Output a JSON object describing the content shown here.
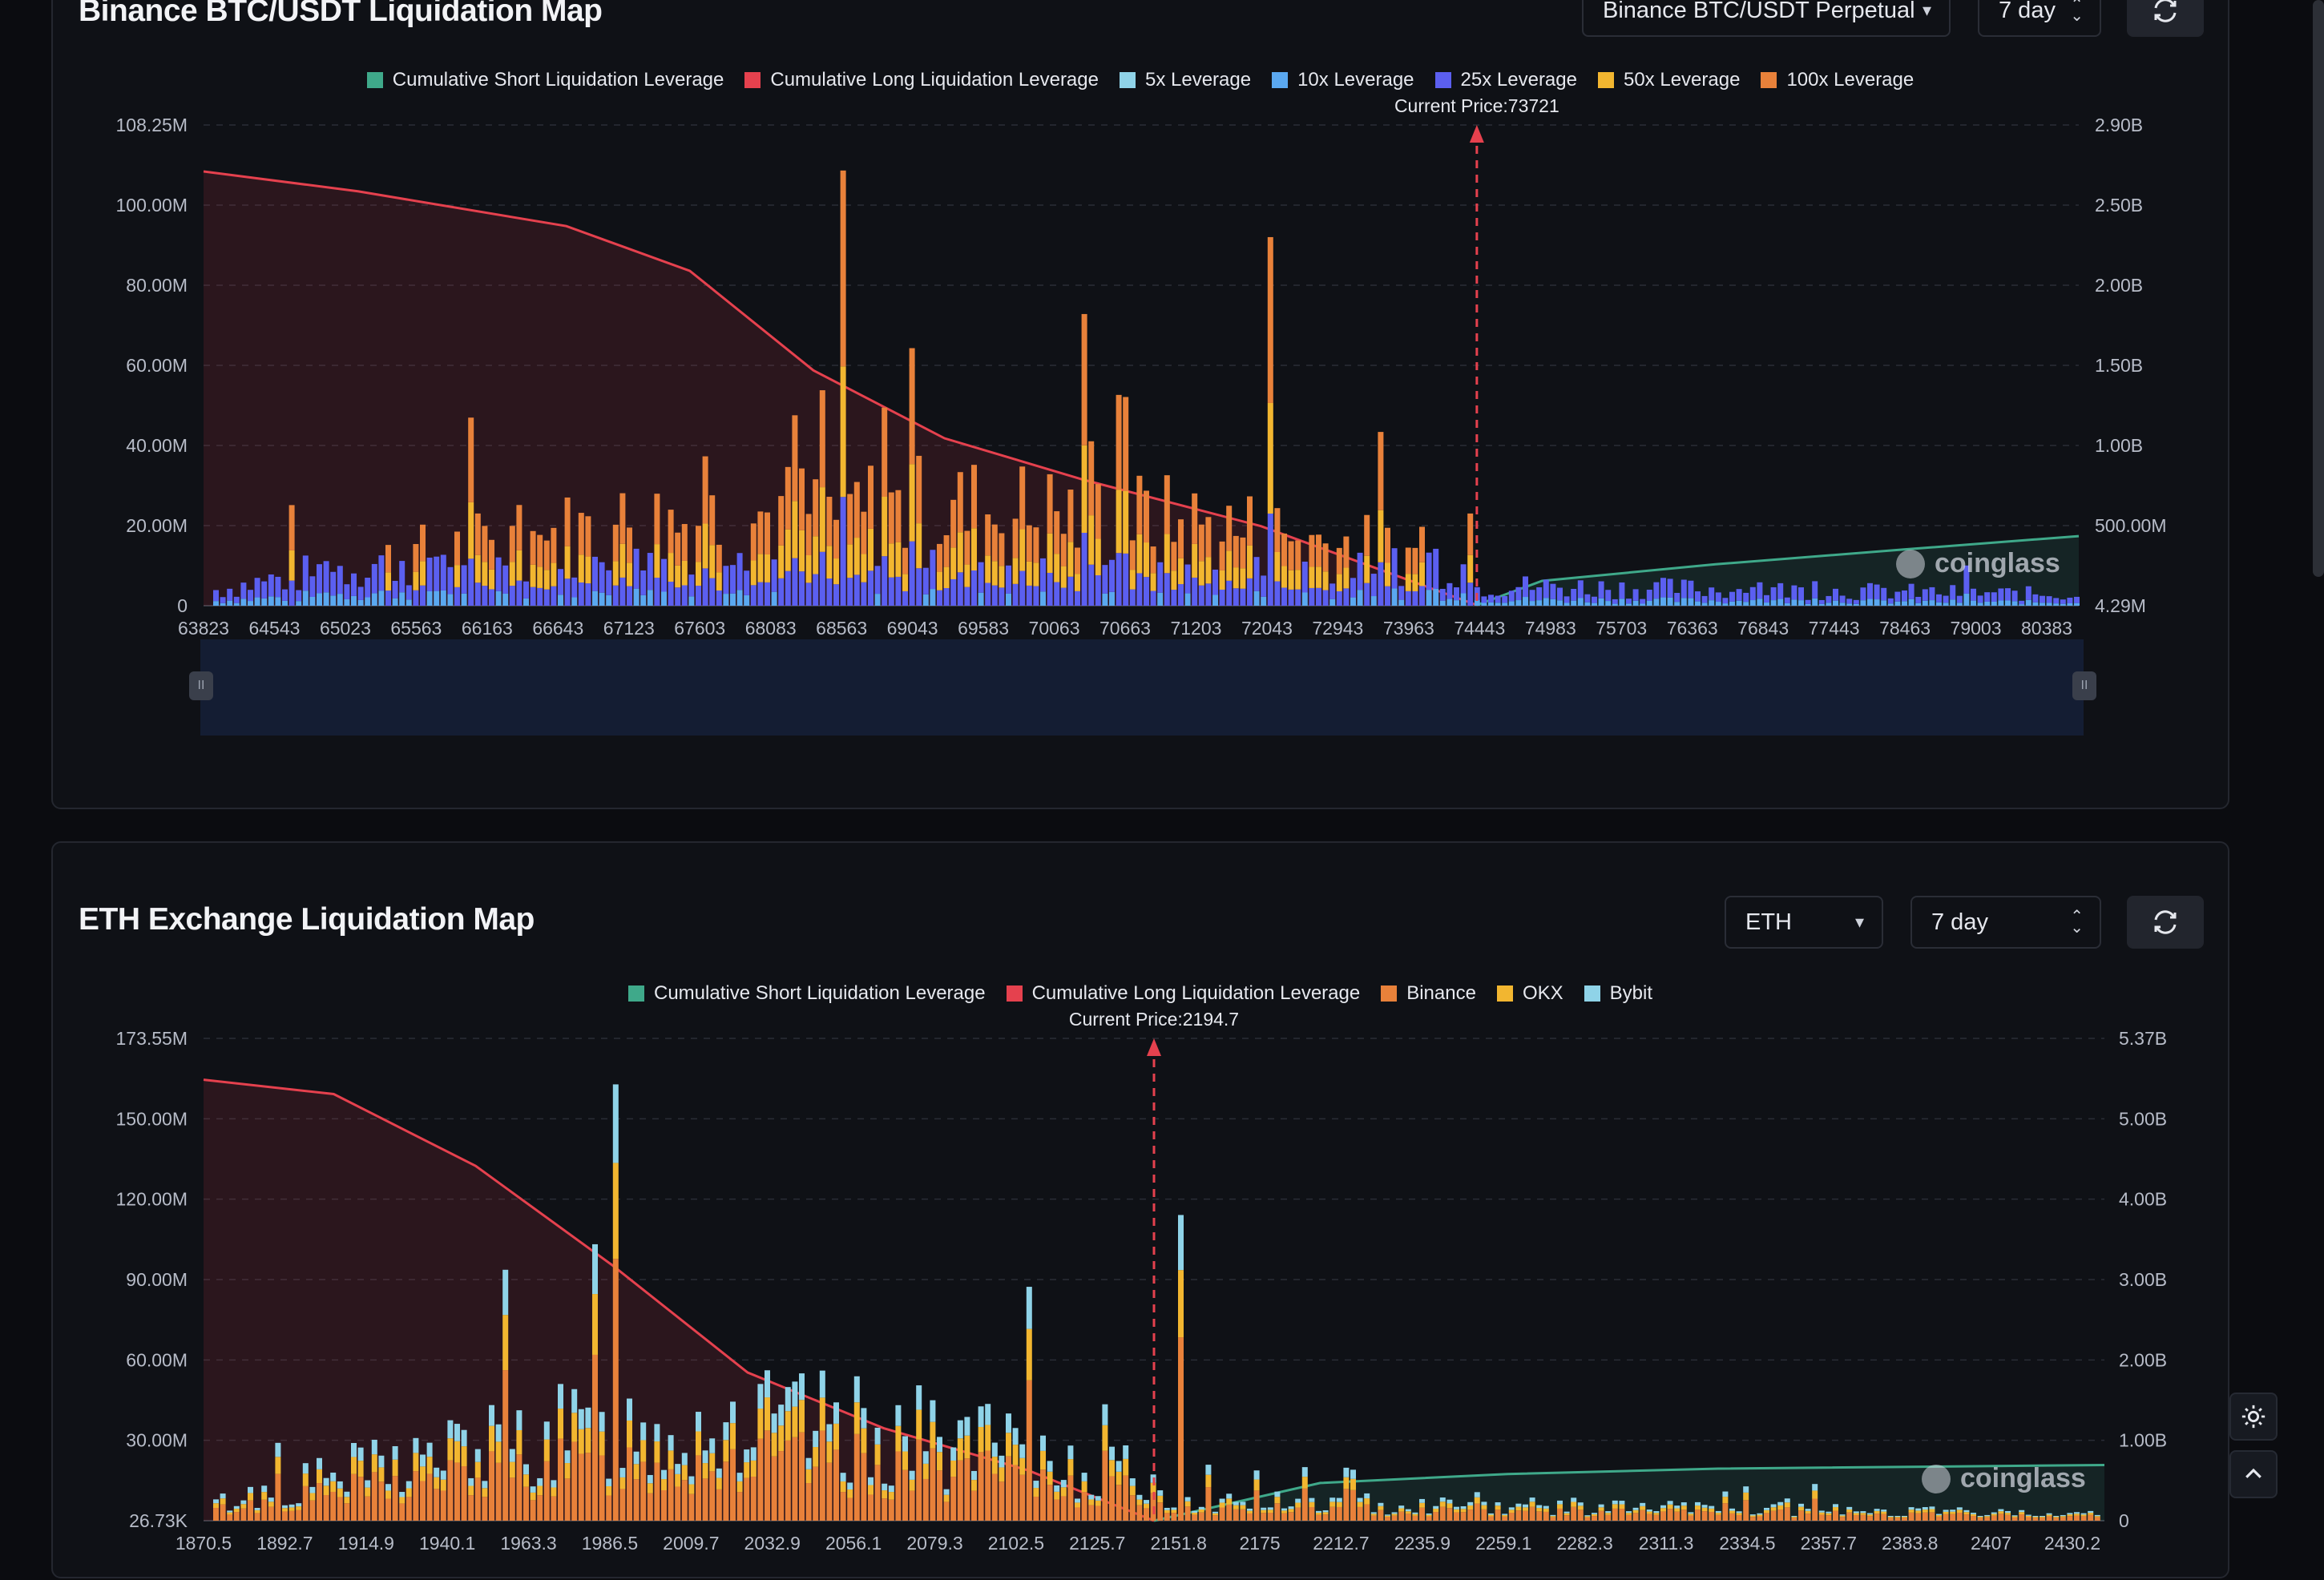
{
  "colors": {
    "short": "#3fa98a",
    "long": "#e5414e",
    "lev5": "#8fd3e8",
    "lev10": "#5aa8f0",
    "lev25": "#5b5ff0",
    "lev50": "#f2b630",
    "lev100": "#e8813a",
    "binance": "#e8813a",
    "okx": "#f2b630",
    "bybit": "#8fd3e8"
  },
  "btc": {
    "title": "Binance BTC/USDT Liquidation Map",
    "pair_select": "Binance BTC/USDT Perpetual",
    "range_select": "7 day",
    "legend": [
      {
        "label": "Cumulative Short Liquidation Leverage",
        "color": "#3fa98a"
      },
      {
        "label": "Cumulative Long Liquidation Leverage",
        "color": "#e5414e"
      },
      {
        "label": "5x Leverage",
        "color": "#8fd3e8"
      },
      {
        "label": "10x Leverage",
        "color": "#5aa8f0"
      },
      {
        "label": "25x Leverage",
        "color": "#5b5ff0"
      },
      {
        "label": "50x Leverage",
        "color": "#f2b630"
      },
      {
        "label": "100x Leverage",
        "color": "#e8813a"
      }
    ],
    "current_price": "Current Price:73721",
    "watermark": "coinglass"
  },
  "eth": {
    "title": "ETH Exchange Liquidation Map",
    "coin_select": "ETH",
    "range_select": "7 day",
    "legend": [
      {
        "label": "Cumulative Short Liquidation Leverage",
        "color": "#3fa98a"
      },
      {
        "label": "Cumulative Long Liquidation Leverage",
        "color": "#e5414e"
      },
      {
        "label": "Binance",
        "color": "#e8813a"
      },
      {
        "label": "OKX",
        "color": "#f2b630"
      },
      {
        "label": "Bybit",
        "color": "#8fd3e8"
      }
    ],
    "current_price": "Current Price:2194.7",
    "watermark": "coinglass"
  },
  "chart_data": [
    {
      "type": "bar",
      "title": "Binance BTC/USDT Liquidation Map",
      "x_ticks": [
        "63823",
        "64543",
        "65023",
        "65563",
        "66163",
        "66643",
        "67123",
        "67603",
        "68083",
        "68563",
        "69043",
        "69583",
        "70063",
        "70663",
        "71203",
        "72043",
        "72943",
        "73963",
        "74443",
        "74983",
        "75703",
        "76363",
        "76843",
        "77443",
        "78463",
        "79003",
        "80383"
      ],
      "y_left_ticks": [
        "108.25M",
        "100.00M",
        "80.00M",
        "60.00M",
        "40.00M",
        "20.00M",
        "0"
      ],
      "y_right_ticks": [
        "2.90B",
        "2.50B",
        "2.00B",
        "1.50B",
        "1.00B",
        "500.00M",
        "4.29M"
      ],
      "ylim_left": [
        0,
        108.25
      ],
      "ylim_right": [
        4.29,
        2900
      ],
      "current_price": 73721,
      "series": [
        {
          "name": "Cumulative Long Liquidation Leverage",
          "points_x": [
            63823,
            65023,
            66643,
            67603,
            68563,
            69583,
            70663,
            72043,
            73721
          ],
          "values_millions": [
            2620,
            2500,
            2290,
            2020,
            1420,
            1010,
            760,
            480,
            4.29
          ]
        },
        {
          "name": "Cumulative Short Liquidation Leverage",
          "points_x": [
            73721,
            74443,
            76363,
            78463,
            80383
          ],
          "values_millions": [
            4.29,
            150,
            250,
            340,
            420
          ]
        }
      ],
      "bar_peaks": [
        {
          "x": "68563",
          "value_millions": 98
        },
        {
          "x": "72043",
          "value_millions": 83
        },
        {
          "x": "69043",
          "value_millions": 58
        },
        {
          "x": "70663",
          "value_millions": 47
        }
      ]
    },
    {
      "type": "bar",
      "title": "ETH Exchange Liquidation Map",
      "x_ticks": [
        "1870.5",
        "1892.7",
        "1914.9",
        "1940.1",
        "1963.3",
        "1986.5",
        "2009.7",
        "2032.9",
        "2056.1",
        "2079.3",
        "2102.5",
        "2125.7",
        "2151.8",
        "2175",
        "2212.7",
        "2235.9",
        "2259.1",
        "2282.3",
        "2311.3",
        "2334.5",
        "2357.7",
        "2383.8",
        "2407",
        "2430.2"
      ],
      "y_left_ticks": [
        "173.55M",
        "150.00M",
        "120.00M",
        "90.00M",
        "60.00M",
        "30.00M",
        "26.73K"
      ],
      "y_right_ticks": [
        "5.37B",
        "5.00B",
        "4.00B",
        "3.00B",
        "2.00B",
        "1.00B",
        "0"
      ],
      "ylim_left": [
        0,
        173.55
      ],
      "ylim_right": [
        0,
        5370
      ],
      "current_price": 2194.7,
      "series": [
        {
          "name": "Cumulative Long Liquidation Leverage",
          "points_x": [
            1870.5,
            1914.9,
            1963.3,
            2009.7,
            2056.1,
            2102.5,
            2151.8,
            2194.7
          ],
          "values_millions": [
            4910,
            4750,
            3950,
            2850,
            1650,
            1030,
            560,
            0
          ]
        },
        {
          "name": "Cumulative Short Liquidation Leverage",
          "points_x": [
            2194.7,
            2235.9,
            2282.3,
            2334.5,
            2430.2
          ],
          "values_millions": [
            0,
            420,
            520,
            580,
            620
          ]
        }
      ],
      "bar_peaks": [
        {
          "x": "1986.5",
          "value_millions": 157
        },
        {
          "x": "2151.8",
          "value_millions": 110
        }
      ]
    }
  ]
}
